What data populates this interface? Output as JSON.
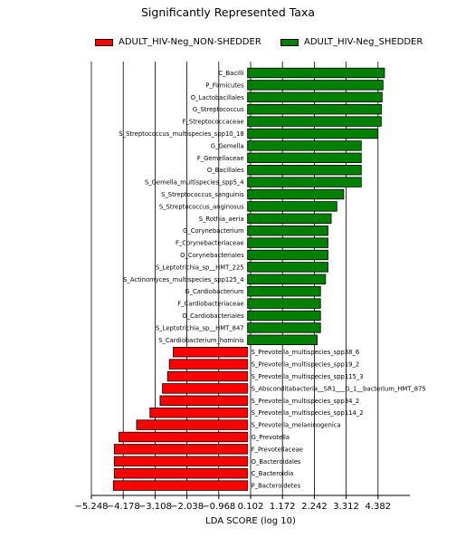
{
  "chart_data": {
    "type": "bar",
    "orientation": "horizontal",
    "title": "Significantly Represented Taxa",
    "xlabel": "LDA SCORE (log 10)",
    "ylabel": "",
    "xlim": [
      -5.248,
      5.452
    ],
    "xticks": [
      -5.248,
      -4.178,
      -3.108,
      -2.038,
      -0.968,
      0.102,
      1.172,
      2.242,
      3.312,
      4.382
    ],
    "xtick_labels": [
      "−5.248",
      "−4.178",
      "−3.108",
      "−2.038",
      "−0.968",
      "0.102",
      "1.172",
      "2.242",
      "3.312",
      "4.382"
    ],
    "grid": "vertical",
    "legend_position": "top-center",
    "colors": {
      "ADULT_HIV-Neg_NON-SHEDDER": "#ff0000",
      "ADULT_HIV-Neg_SHEDDER": "#008000"
    },
    "legend": [
      {
        "name": "ADULT_HIV-Neg_NON-SHEDDER",
        "color": "#ff0000"
      },
      {
        "name": "ADULT_HIV-Neg_SHEDDER",
        "color": "#008000"
      }
    ],
    "bars": [
      {
        "label": "C_Bacilli",
        "value": 4.6,
        "group": "ADULT_HIV-Neg_SHEDDER"
      },
      {
        "label": "P_Firmicutes",
        "value": 4.55,
        "group": "ADULT_HIV-Neg_SHEDDER"
      },
      {
        "label": "O_Lactobacillales",
        "value": 4.52,
        "group": "ADULT_HIV-Neg_SHEDDER"
      },
      {
        "label": "G_Streptococcus",
        "value": 4.5,
        "group": "ADULT_HIV-Neg_SHEDDER"
      },
      {
        "label": "F_Streptococcaceae",
        "value": 4.49,
        "group": "ADULT_HIV-Neg_SHEDDER"
      },
      {
        "label": "S_Streptococcus_multispecies_spp10_18",
        "value": 4.37,
        "group": "ADULT_HIV-Neg_SHEDDER"
      },
      {
        "label": "G_Gemella",
        "value": 3.82,
        "group": "ADULT_HIV-Neg_SHEDDER"
      },
      {
        "label": "F_Gemellaceae",
        "value": 3.82,
        "group": "ADULT_HIV-Neg_SHEDDER"
      },
      {
        "label": "O_Bacillales",
        "value": 3.82,
        "group": "ADULT_HIV-Neg_SHEDDER"
      },
      {
        "label": "S_Gemella_multispecies_spp5_4",
        "value": 3.82,
        "group": "ADULT_HIV-Neg_SHEDDER"
      },
      {
        "label": "S_Streptococcus_sanguinis",
        "value": 3.23,
        "group": "ADULT_HIV-Neg_SHEDDER"
      },
      {
        "label": "S_Streptococcus_anginosus",
        "value": 3.0,
        "group": "ADULT_HIV-Neg_SHEDDER"
      },
      {
        "label": "S_Rothia_aeria",
        "value": 2.81,
        "group": "ADULT_HIV-Neg_SHEDDER"
      },
      {
        "label": "G_Corynebacterium",
        "value": 2.7,
        "group": "ADULT_HIV-Neg_SHEDDER"
      },
      {
        "label": "F_Corynebacteriaceae",
        "value": 2.7,
        "group": "ADULT_HIV-Neg_SHEDDER"
      },
      {
        "label": "O_Corynebacteriales",
        "value": 2.7,
        "group": "ADULT_HIV-Neg_SHEDDER"
      },
      {
        "label": "S_Leptotrichia_sp__HMT_225",
        "value": 2.7,
        "group": "ADULT_HIV-Neg_SHEDDER"
      },
      {
        "label": "S_Actinomyces_multispecies_spp125_4",
        "value": 2.62,
        "group": "ADULT_HIV-Neg_SHEDDER"
      },
      {
        "label": "G_Cardiobacterium",
        "value": 2.45,
        "group": "ADULT_HIV-Neg_SHEDDER"
      },
      {
        "label": "F_Cardiobacteriaceae",
        "value": 2.45,
        "group": "ADULT_HIV-Neg_SHEDDER"
      },
      {
        "label": "O_Cardiobacteriales",
        "value": 2.45,
        "group": "ADULT_HIV-Neg_SHEDDER"
      },
      {
        "label": "S_Leptotrichia_sp__HMT_847",
        "value": 2.45,
        "group": "ADULT_HIV-Neg_SHEDDER"
      },
      {
        "label": "S_Cardiobacterium_hominis",
        "value": 2.34,
        "group": "ADULT_HIV-Neg_SHEDDER"
      },
      {
        "label": "S_Prevotella_multispecies_spp38_6",
        "value": -2.5,
        "group": "ADULT_HIV-Neg_NON-SHEDDER"
      },
      {
        "label": "S_Prevotella_multispecies_spp19_2",
        "value": -2.63,
        "group": "ADULT_HIV-Neg_NON-SHEDDER"
      },
      {
        "label": "S_Prevotella_multispecies_spp115_3",
        "value": -2.69,
        "group": "ADULT_HIV-Neg_NON-SHEDDER"
      },
      {
        "label": "S_Absconditabacteria__SR1___G_1__bacterium_HMT_875",
        "value": -2.86,
        "group": "ADULT_HIV-Neg_NON-SHEDDER"
      },
      {
        "label": "S_Prevotella_multispecies_spp34_2",
        "value": -2.94,
        "group": "ADULT_HIV-Neg_NON-SHEDDER"
      },
      {
        "label": "S_Prevotella_multispecies_spp114_2",
        "value": -3.28,
        "group": "ADULT_HIV-Neg_NON-SHEDDER"
      },
      {
        "label": "S_Prevotella_melaninogenica",
        "value": -3.73,
        "group": "ADULT_HIV-Neg_NON-SHEDDER"
      },
      {
        "label": "G_Prevotella",
        "value": -4.32,
        "group": "ADULT_HIV-Neg_NON-SHEDDER"
      },
      {
        "label": "F_Prevotellaceae",
        "value": -4.48,
        "group": "ADULT_HIV-Neg_NON-SHEDDER"
      },
      {
        "label": "O_Bacteroidales",
        "value": -4.48,
        "group": "ADULT_HIV-Neg_NON-SHEDDER"
      },
      {
        "label": "C_Bacteroidia",
        "value": -4.48,
        "group": "ADULT_HIV-Neg_NON-SHEDDER"
      },
      {
        "label": "P_Bacteroidetes",
        "value": -4.51,
        "group": "ADULT_HIV-Neg_NON-SHEDDER"
      }
    ]
  }
}
